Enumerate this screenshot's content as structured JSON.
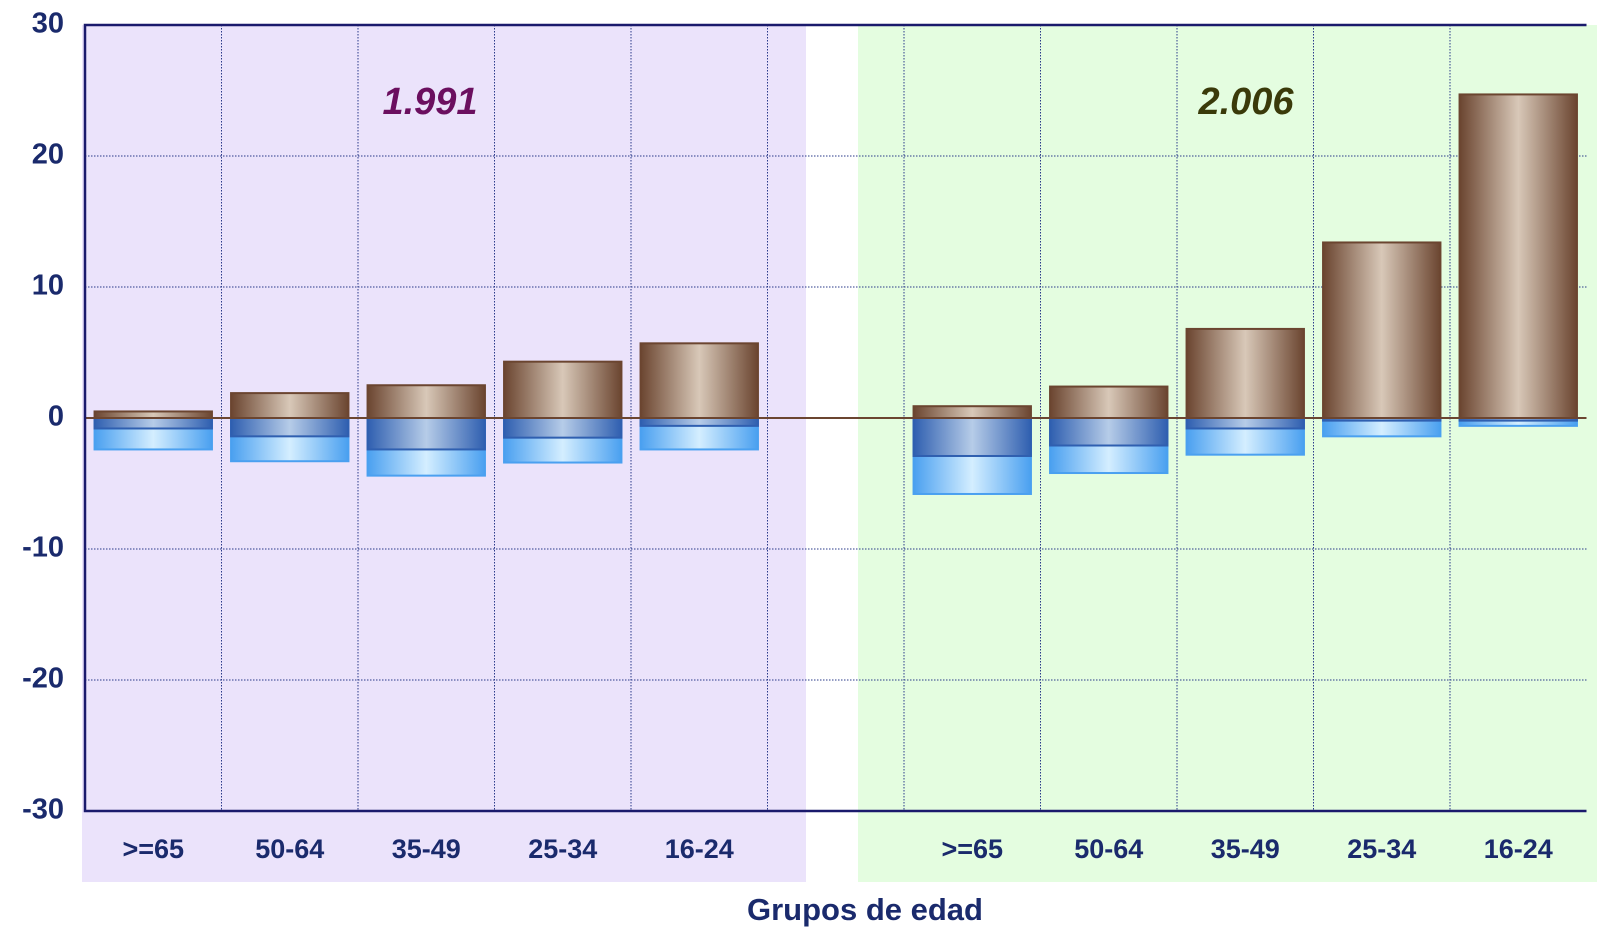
{
  "chart_data": {
    "type": "bar",
    "xlabel": "Grupos de edad",
    "categories": [
      ">=65",
      "50-64",
      "35-49",
      "25-34",
      "16-24",
      null,
      ">=65",
      "50-64",
      "35-49",
      "25-34",
      "16-24"
    ],
    "series": [
      {
        "color": "#4aa0f0",
        "values": [
          -2.4,
          -3.3,
          -4.4,
          -3.4,
          -2.4,
          null,
          -5.8,
          -4.2,
          -2.8,
          -1.4,
          -0.6
        ]
      },
      {
        "color": "#2f5fb0",
        "values": [
          -0.8,
          -1.4,
          -2.4,
          -1.5,
          -0.6,
          null,
          -2.9,
          -2.1,
          -0.8,
          -0.2,
          -0.2
        ]
      },
      {
        "color": "#6b4530",
        "values": [
          0.5,
          1.9,
          2.5,
          4.3,
          5.7,
          null,
          0.9,
          2.4,
          6.8,
          13.4,
          24.7
        ]
      }
    ],
    "annotations": [
      {
        "text": "1.991",
        "color": "#6b0f5f"
      },
      {
        "text": "2.006",
        "color": "#3a3a0a"
      }
    ],
    "ylim": [
      -30,
      30
    ],
    "yticks": [
      -30,
      -20,
      -10,
      0,
      10,
      20,
      30
    ],
    "grid": true
  }
}
